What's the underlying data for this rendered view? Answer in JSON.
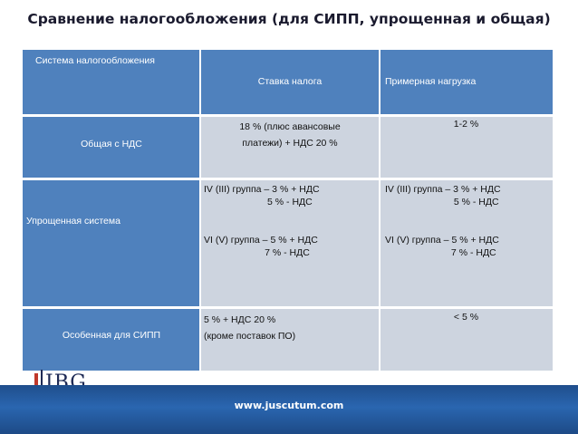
{
  "title": "Сравнение налогообложения (для СИПП, упрощенная и общая)",
  "table": {
    "headers": {
      "system": "Система налогообложения",
      "rate": "Ставка налога",
      "load": "Примерная нагрузка"
    },
    "rows": [
      {
        "name": "Общая с НДС",
        "rate": "18 % (плюс авансовые\nплатежи) + НДС 20 %",
        "load": "1-2 %"
      },
      {
        "name": "Упрощенная система",
        "rate": "IV (III) группа – 3 % + НДС\n                        5 % - НДС\n\n\nVI (V) группа – 5 % + НДС\n                       7 % - НДС",
        "load": "IV (III) группа – 3 % + НДС\n                          5 % - НДС\n\n\nVI (V) группа – 5 % + НДС\n                         7 % - НДС"
      },
      {
        "name": "Особенная для СИПП",
        "rate": "5 % + НДС 20 %\n(кроме поставок ПО)",
        "load": "< 5 %"
      }
    ]
  },
  "logo": {
    "text": "IBG"
  },
  "footer": {
    "url": "www.juscutum.com"
  },
  "colors": {
    "header_blue": "#4f81bd",
    "body_gray": "#cdd4df",
    "footer_blue": "#2a66b0"
  }
}
